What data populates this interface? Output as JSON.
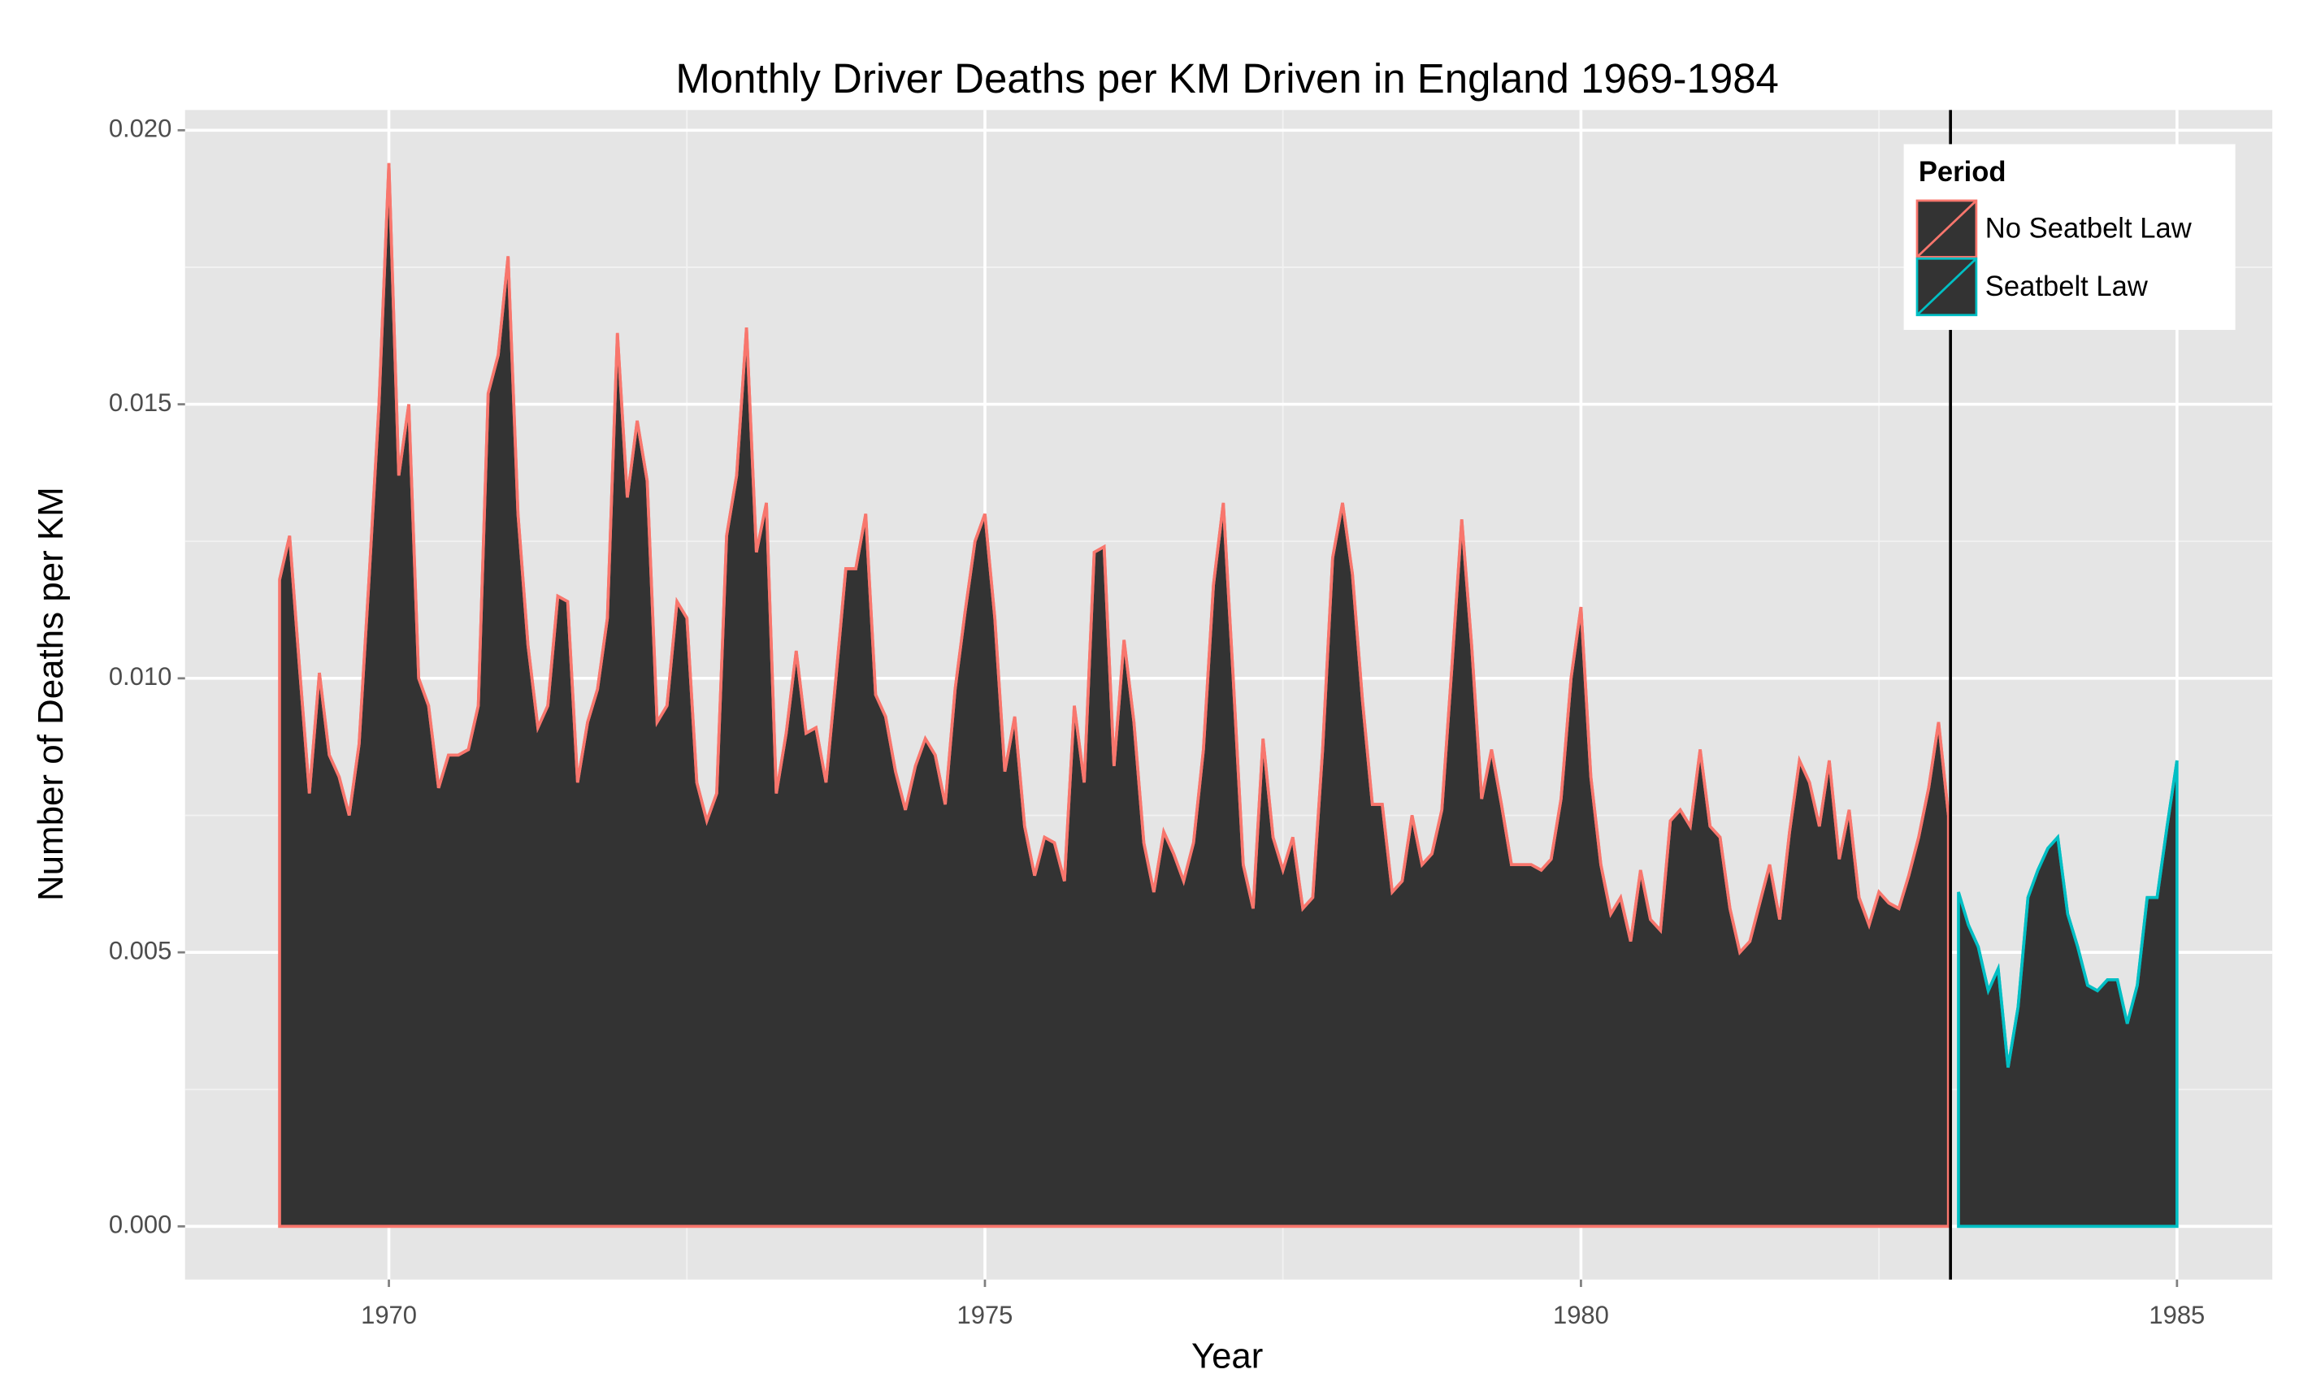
{
  "chart_data": {
    "type": "area",
    "title": "Monthly Driver Deaths per KM Driven in England 1969-1984",
    "x_label": "Year",
    "y_label": "Number of Deaths per KM",
    "legend_title": "Period",
    "legend_position": "top-right",
    "grid": true,
    "xlim": [
      1968.29,
      1985.8
    ],
    "ylim": [
      -0.00097,
      0.02037
    ],
    "xticks": [
      1970,
      1975,
      1980,
      1985
    ],
    "yticks": [
      {
        "value": 0,
        "label": "0.000"
      },
      {
        "value": 0.005,
        "label": "0.005"
      },
      {
        "value": 0.01,
        "label": "0.010"
      },
      {
        "value": 0.015,
        "label": "0.015"
      },
      {
        "value": 0.02,
        "label": "0.020"
      }
    ],
    "vline": 1983.1,
    "vline_color": "#000000",
    "series": [
      {
        "name": "No Seatbelt Law",
        "color": "#f8766d",
        "fill": "#333333",
        "x": [
          1969.083,
          1969.167,
          1969.25,
          1969.333,
          1969.417,
          1969.5,
          1969.583,
          1969.667,
          1969.75,
          1969.833,
          1969.917,
          1970,
          1970.083,
          1970.167,
          1970.25,
          1970.333,
          1970.417,
          1970.5,
          1970.583,
          1970.667,
          1970.75,
          1970.833,
          1970.917,
          1971,
          1971.083,
          1971.167,
          1971.25,
          1971.333,
          1971.417,
          1971.5,
          1971.583,
          1971.667,
          1971.75,
          1971.833,
          1971.917,
          1972,
          1972.083,
          1972.167,
          1972.25,
          1972.333,
          1972.417,
          1972.5,
          1972.583,
          1972.667,
          1972.75,
          1972.833,
          1972.917,
          1973,
          1973.083,
          1973.167,
          1973.25,
          1973.333,
          1973.417,
          1973.5,
          1973.583,
          1973.667,
          1973.75,
          1973.833,
          1973.917,
          1974,
          1974.083,
          1974.167,
          1974.25,
          1974.333,
          1974.417,
          1974.5,
          1974.583,
          1974.667,
          1974.75,
          1974.833,
          1974.917,
          1975,
          1975.083,
          1975.167,
          1975.25,
          1975.333,
          1975.417,
          1975.5,
          1975.583,
          1975.667,
          1975.75,
          1975.833,
          1975.917,
          1976,
          1976.083,
          1976.167,
          1976.25,
          1976.333,
          1976.417,
          1976.5,
          1976.583,
          1976.667,
          1976.75,
          1976.833,
          1976.917,
          1977,
          1977.083,
          1977.167,
          1977.25,
          1977.333,
          1977.417,
          1977.5,
          1977.583,
          1977.667,
          1977.75,
          1977.833,
          1977.917,
          1978,
          1978.083,
          1978.167,
          1978.25,
          1978.333,
          1978.417,
          1978.5,
          1978.583,
          1978.667,
          1978.75,
          1978.833,
          1978.917,
          1979,
          1979.083,
          1979.167,
          1979.25,
          1979.333,
          1979.417,
          1979.5,
          1979.583,
          1979.667,
          1979.75,
          1979.833,
          1979.917,
          1980,
          1980.083,
          1980.167,
          1980.25,
          1980.333,
          1980.417,
          1980.5,
          1980.583,
          1980.667,
          1980.75,
          1980.833,
          1980.917,
          1981,
          1981.083,
          1981.167,
          1981.25,
          1981.333,
          1981.417,
          1981.5,
          1981.583,
          1981.667,
          1981.75,
          1981.833,
          1981.917,
          1982,
          1982.083,
          1982.167,
          1982.25,
          1982.333,
          1982.417,
          1982.5,
          1982.583,
          1982.667,
          1982.75,
          1982.833,
          1982.917,
          1983,
          1983.083
        ],
        "values": [
          0.0118,
          0.0126,
          0.0102,
          0.0079,
          0.0101,
          0.0086,
          0.0082,
          0.0075,
          0.0088,
          0.0118,
          0.015,
          0.0194,
          0.0137,
          0.015,
          0.01,
          0.0095,
          0.008,
          0.0086,
          0.0086,
          0.0087,
          0.0095,
          0.0152,
          0.0159,
          0.0177,
          0.013,
          0.0106,
          0.0091,
          0.0095,
          0.0115,
          0.0114,
          0.0081,
          0.0092,
          0.0098,
          0.0111,
          0.0163,
          0.0133,
          0.0147,
          0.0136,
          0.0092,
          0.0095,
          0.0114,
          0.0111,
          0.0081,
          0.0074,
          0.0079,
          0.0126,
          0.0137,
          0.0164,
          0.0123,
          0.0132,
          0.0079,
          0.009,
          0.0105,
          0.009,
          0.0091,
          0.0081,
          0.01,
          0.012,
          0.012,
          0.013,
          0.0097,
          0.0093,
          0.0083,
          0.0076,
          0.0084,
          0.0089,
          0.0086,
          0.0077,
          0.0098,
          0.0112,
          0.0125,
          0.013,
          0.0111,
          0.0083,
          0.0093,
          0.0073,
          0.0064,
          0.0071,
          0.007,
          0.0063,
          0.0095,
          0.0081,
          0.0123,
          0.0124,
          0.0084,
          0.0107,
          0.0092,
          0.007,
          0.0061,
          0.0072,
          0.0068,
          0.0063,
          0.007,
          0.0087,
          0.0117,
          0.0132,
          0.01,
          0.0066,
          0.0058,
          0.0089,
          0.0071,
          0.0065,
          0.0071,
          0.0058,
          0.006,
          0.0087,
          0.0122,
          0.0132,
          0.0119,
          0.0096,
          0.0077,
          0.0077,
          0.0061,
          0.0063,
          0.0075,
          0.0066,
          0.0068,
          0.0076,
          0.0102,
          0.0129,
          0.0106,
          0.0078,
          0.0087,
          0.0077,
          0.0066,
          0.0066,
          0.0066,
          0.0065,
          0.0067,
          0.0078,
          0.01,
          0.0113,
          0.0082,
          0.0066,
          0.0057,
          0.006,
          0.0052,
          0.0065,
          0.0056,
          0.0054,
          0.0074,
          0.0076,
          0.0073,
          0.0087,
          0.0073,
          0.0071,
          0.0058,
          0.005,
          0.0052,
          0.0059,
          0.0066,
          0.0056,
          0.0072,
          0.0085,
          0.0081,
          0.0073,
          0.0085,
          0.0067,
          0.0076,
          0.006,
          0.0055,
          0.0061,
          0.0059,
          0.0058,
          0.0064,
          0.0071,
          0.008,
          0.0092,
          0.0075
        ]
      },
      {
        "name": "Seatbelt Law",
        "color": "#00bfc4",
        "fill": "#333333",
        "x": [
          1983.167,
          1983.25,
          1983.333,
          1983.417,
          1983.5,
          1983.583,
          1983.667,
          1983.75,
          1983.833,
          1983.917,
          1984,
          1984.083,
          1984.167,
          1984.25,
          1984.333,
          1984.417,
          1984.5,
          1984.583,
          1984.667,
          1984.75,
          1984.833,
          1984.917,
          1985
        ],
        "values": [
          0.0061,
          0.0055,
          0.0051,
          0.0043,
          0.0047,
          0.0029,
          0.004,
          0.006,
          0.0065,
          0.0069,
          0.0071,
          0.0057,
          0.0051,
          0.0044,
          0.0043,
          0.0045,
          0.0045,
          0.0037,
          0.0044,
          0.006,
          0.006,
          0.0073,
          0.0085
        ]
      }
    ]
  }
}
